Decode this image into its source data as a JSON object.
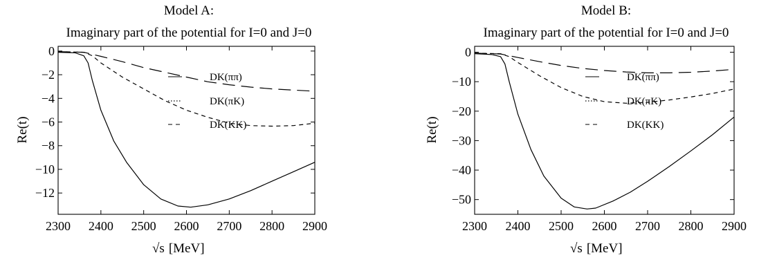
{
  "chart_data": [
    {
      "type": "line",
      "title": "Model A:",
      "subtitle": "Imaginary part of the potential for I=0 and J=0",
      "xlabel_root": "√s",
      "xlabel_unit": "[MeV]",
      "ylabel": "Re(t)",
      "xlim": [
        2300,
        2900
      ],
      "ylim": [
        -13.8,
        0.4
      ],
      "xticks": [
        2300,
        2400,
        2500,
        2600,
        2700,
        2800,
        2900
      ],
      "yticks": [
        0,
        -2,
        -4,
        -6,
        -8,
        -10,
        -12
      ],
      "xtick_labels": [
        "2300",
        "2400",
        "2500",
        "2600",
        "2700",
        "2800",
        "2900"
      ],
      "ytick_labels": [
        "0",
        "−2",
        "−4",
        "−6",
        "−8",
        "−10",
        "−12"
      ],
      "legend": [
        "DK(ππ)",
        "DK(πK)",
        "DK(KK)"
      ],
      "series": [
        {
          "name": "",
          "style": "solid",
          "x": [
            2300,
            2340,
            2360,
            2370,
            2380,
            2400,
            2430,
            2460,
            2500,
            2540,
            2580,
            2610,
            2650,
            2700,
            2750,
            2800,
            2850,
            2900
          ],
          "y": [
            -0.1,
            -0.15,
            -0.4,
            -1.0,
            -2.5,
            -5.0,
            -7.6,
            -9.4,
            -11.3,
            -12.5,
            -13.1,
            -13.2,
            -13.0,
            -12.5,
            -11.8,
            -11.0,
            -10.2,
            -9.4
          ]
        },
        {
          "name": "DK(ππ)",
          "style": "long-dash",
          "x": [
            2300,
            2360,
            2400,
            2450,
            2500,
            2550,
            2600,
            2650,
            2700,
            2750,
            2800,
            2850,
            2900
          ],
          "y": [
            -0.05,
            -0.1,
            -0.45,
            -0.9,
            -1.4,
            -1.8,
            -2.2,
            -2.6,
            -2.85,
            -3.05,
            -3.2,
            -3.3,
            -3.4
          ]
        },
        {
          "name": "DK(KK)",
          "style": "short-dash",
          "x": [
            2300,
            2360,
            2380,
            2400,
            2450,
            2500,
            2550,
            2600,
            2650,
            2700,
            2750,
            2800,
            2850,
            2900
          ],
          "y": [
            -0.05,
            -0.1,
            -0.4,
            -1.0,
            -2.2,
            -3.2,
            -4.2,
            -5.0,
            -5.6,
            -6.1,
            -6.3,
            -6.35,
            -6.3,
            -6.1
          ]
        }
      ]
    },
    {
      "type": "line",
      "title": "Model B:",
      "subtitle": "Imaginary part of the potential for I=0 and J=0",
      "xlabel_root": "√s",
      "xlabel_unit": "[MeV]",
      "ylabel": "Re(t)",
      "xlim": [
        2300,
        2900
      ],
      "ylim": [
        -55,
        2
      ],
      "xticks": [
        2300,
        2400,
        2500,
        2600,
        2700,
        2800,
        2900
      ],
      "yticks": [
        0,
        -10,
        -20,
        -30,
        -40,
        -50
      ],
      "xtick_labels": [
        "2300",
        "2400",
        "2500",
        "2600",
        "2700",
        "2800",
        "2900"
      ],
      "ytick_labels": [
        "0",
        "−10",
        "−20",
        "−30",
        "−40",
        "−50"
      ],
      "legend": [
        "DK(ππ)",
        "DK(πK)",
        "DK(KK)"
      ],
      "series": [
        {
          "name": "",
          "style": "solid",
          "x": [
            2300,
            2340,
            2360,
            2370,
            2380,
            2400,
            2430,
            2460,
            2500,
            2530,
            2560,
            2580,
            2620,
            2660,
            2700,
            2750,
            2800,
            2850,
            2900
          ],
          "y": [
            -0.5,
            -0.8,
            -1.5,
            -4.0,
            -10.0,
            -21.0,
            -33.0,
            -42.0,
            -49.5,
            -52.5,
            -53.2,
            -52.9,
            -50.5,
            -47.5,
            -43.8,
            -38.8,
            -33.5,
            -28.0,
            -22.0
          ]
        },
        {
          "name": "DK(ππ)",
          "style": "long-dash",
          "x": [
            2300,
            2360,
            2400,
            2450,
            2500,
            2550,
            2600,
            2650,
            2700,
            2750,
            2800,
            2850,
            2900
          ],
          "y": [
            -0.3,
            -0.6,
            -1.8,
            -3.2,
            -4.5,
            -5.5,
            -6.2,
            -6.7,
            -7.0,
            -7.0,
            -6.8,
            -6.4,
            -5.8
          ]
        },
        {
          "name": "DK(KK)",
          "style": "short-dash",
          "x": [
            2300,
            2360,
            2380,
            2400,
            2450,
            2500,
            2550,
            2600,
            2650,
            2700,
            2750,
            2800,
            2850,
            2900
          ],
          "y": [
            -0.3,
            -0.5,
            -1.5,
            -3.5,
            -8.0,
            -12.0,
            -15.0,
            -16.8,
            -17.3,
            -17.0,
            -16.2,
            -15.2,
            -14.0,
            -12.5
          ]
        }
      ]
    }
  ]
}
